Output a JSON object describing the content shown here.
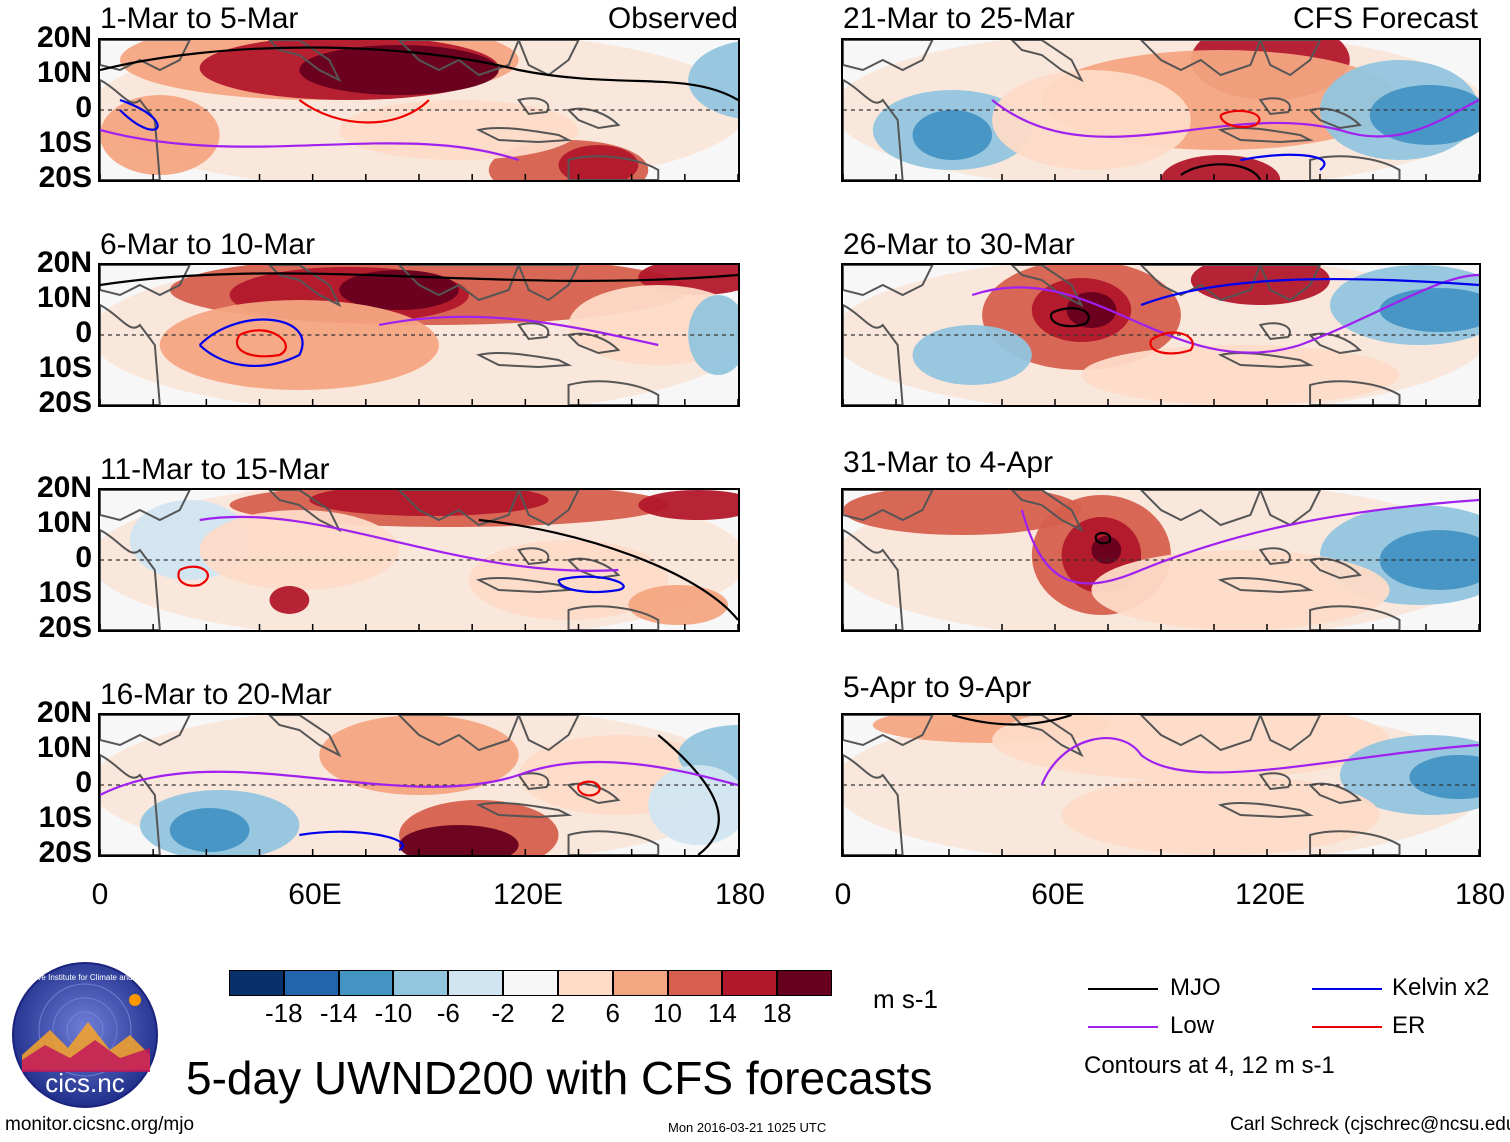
{
  "panels": [
    {
      "title": "1-Mar to 5-Mar",
      "label": "Observed",
      "scheme": "obs1"
    },
    {
      "title": "6-Mar to 10-Mar",
      "label": "",
      "scheme": "obs2"
    },
    {
      "title": "11-Mar to 15-Mar",
      "label": "",
      "scheme": "obs3"
    },
    {
      "title": "16-Mar to 20-Mar",
      "label": "",
      "scheme": "obs4"
    },
    {
      "title": "21-Mar to 25-Mar",
      "label": "CFS Forecast",
      "scheme": "fc1"
    },
    {
      "title": "26-Mar to 30-Mar",
      "label": "",
      "scheme": "fc2"
    },
    {
      "title": "31-Mar to 4-Apr",
      "label": "",
      "scheme": "fc3"
    },
    {
      "title": "5-Apr to 9-Apr",
      "label": "",
      "scheme": "fc4"
    }
  ],
  "lat_labels": [
    "20N",
    "10N",
    "0",
    "10S",
    "20S"
  ],
  "lon_labels": [
    "0",
    "60E",
    "120E",
    "180"
  ],
  "colorbar": {
    "colors": [
      "#08306b",
      "#2166ac",
      "#4393c3",
      "#92c5de",
      "#d1e5f0",
      "#f7f7f7",
      "#fddbc7",
      "#f4a582",
      "#d6604d",
      "#b2182b",
      "#67001f"
    ],
    "labels": [
      "-18",
      "-14",
      "-10",
      "-6",
      "-2",
      "2",
      "6",
      "10",
      "14",
      "18"
    ],
    "units": "m s-1"
  },
  "legend": {
    "items": [
      {
        "name": "MJO",
        "color": "#000000"
      },
      {
        "name": "Kelvin x2",
        "color": "#0000ee"
      },
      {
        "name": "Low",
        "color": "#a020f0"
      },
      {
        "name": "ER",
        "color": "#ee0000"
      }
    ],
    "contours_note": "Contours at 4, 12 m s-1"
  },
  "title": "5-day UWND200 with CFS forecasts",
  "footer": {
    "left": "monitor.cicsnc.org/mjo",
    "center": "Mon 2016-03-21 1025 UTC",
    "right": "Carl Schreck (cjschrec@ncsu.edu)"
  },
  "logo": {
    "text": "cics.nc",
    "ring_text": "Cooperative Institute for Climate and Satellites"
  }
}
